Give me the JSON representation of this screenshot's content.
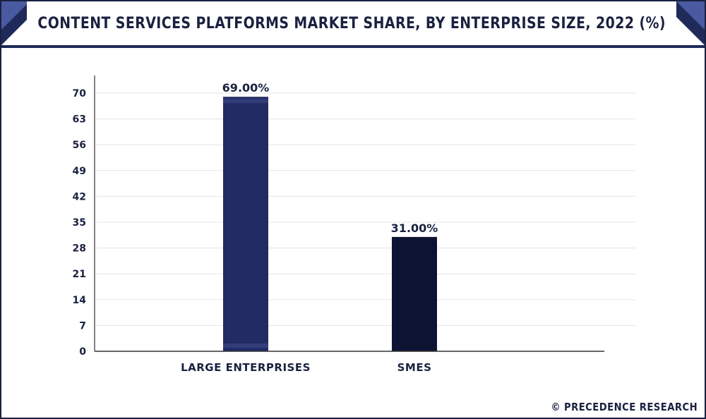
{
  "header": {
    "title": "CONTENT SERVICES PLATFORMS MARKET SHARE, BY ENTERPRISE SIZE, 2022 (%)"
  },
  "footer": {
    "credit": "© PRECEDENCE RESEARCH"
  },
  "colors": {
    "brand_navy": "#1f2a5a",
    "accent_blue": "#4a5aa0",
    "bar_large": "#222b63",
    "bar_smes": "#0d1433",
    "text": "#1a2140"
  },
  "chart_data": {
    "type": "bar",
    "title": "CONTENT SERVICES PLATFORMS MARKET SHARE, BY ENTERPRISE SIZE, 2022 (%)",
    "categories": [
      "LARGE ENTERPRISES",
      "SMES"
    ],
    "values": [
      69.0,
      31.0
    ],
    "data_labels": [
      "69.00%",
      "31.00%"
    ],
    "bar_colors": [
      "#222b63",
      "#0d1433"
    ],
    "xlabel": "",
    "ylabel": "",
    "ylim": [
      0,
      70
    ],
    "yticks": [
      0,
      7,
      14,
      21,
      28,
      35,
      42,
      49,
      56,
      63,
      70
    ],
    "grid": true,
    "legend": "none"
  }
}
